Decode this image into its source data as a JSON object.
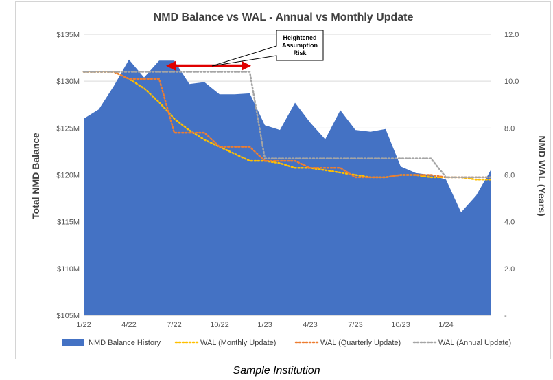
{
  "chart_data": {
    "type": "area",
    "title": "NMD Balance vs WAL - Annual vs Monthly Update",
    "ylabel": "Total NMD Balance",
    "y2label": "NMD WAL (Years)",
    "ylim": [
      105,
      135
    ],
    "y2lim": [
      0,
      12
    ],
    "y_ticks": [
      105,
      110,
      115,
      120,
      125,
      130,
      135
    ],
    "y_tick_labels": [
      "$105M",
      "$110M",
      "$115M",
      "$120M",
      "$125M",
      "$130M",
      "$135M"
    ],
    "y2_ticks": [
      0,
      2,
      4,
      6,
      8,
      10,
      12
    ],
    "y2_tick_labels": [
      "-",
      "2.0",
      "4.0",
      "6.0",
      "8.0",
      "10.0",
      "12.0"
    ],
    "x_tick_labels": [
      "1/22",
      "4/22",
      "7/22",
      "10/22",
      "1/23",
      "4/23",
      "7/23",
      "10/23",
      "1/24"
    ],
    "x_tick_index": [
      0,
      3,
      6,
      9,
      12,
      15,
      18,
      21,
      24
    ],
    "n_points": 28,
    "balance": {
      "name": "NMD Balance History",
      "color": "#4472c4",
      "values": [
        126.0,
        127.0,
        129.5,
        132.3,
        130.4,
        132.2,
        132.2,
        129.7,
        129.9,
        128.6,
        128.6,
        128.7,
        125.3,
        124.8,
        127.7,
        125.6,
        123.8,
        126.9,
        124.8,
        124.6,
        124.9,
        120.9,
        120.2,
        120.0,
        119.5,
        116.0,
        117.8,
        120.6
      ]
    },
    "wal_series": [
      {
        "name": "WAL (Monthly Update)",
        "color": "#ffc000",
        "values": [
          10.4,
          10.4,
          10.4,
          10.1,
          9.7,
          9.1,
          8.4,
          7.9,
          7.5,
          7.2,
          6.9,
          6.6,
          6.6,
          6.5,
          6.3,
          6.3,
          6.2,
          6.1,
          6.0,
          5.9,
          5.9,
          6.0,
          6.0,
          5.9,
          5.9,
          5.9,
          5.8,
          5.8
        ]
      },
      {
        "name": "WAL (Quarterly Update)",
        "color": "#ed7d31",
        "values": [
          10.4,
          10.4,
          10.4,
          10.1,
          10.1,
          10.1,
          7.8,
          7.8,
          7.8,
          7.2,
          7.2,
          7.2,
          6.6,
          6.6,
          6.6,
          6.3,
          6.3,
          6.3,
          5.9,
          5.9,
          5.9,
          6.0,
          6.0,
          6.0,
          5.9,
          5.9,
          5.9,
          5.9
        ]
      },
      {
        "name": "WAL (Annual Update)",
        "color": "#a5a5a5",
        "values": [
          10.4,
          10.4,
          10.4,
          10.4,
          10.4,
          10.4,
          10.4,
          10.4,
          10.4,
          10.4,
          10.4,
          10.4,
          6.7,
          6.7,
          6.7,
          6.7,
          6.7,
          6.7,
          6.7,
          6.7,
          6.7,
          6.7,
          6.7,
          6.7,
          5.9,
          5.9,
          5.9,
          5.9
        ]
      }
    ],
    "annotation": {
      "lines": [
        "Heightened",
        "Assumption",
        "Risk"
      ],
      "arrow_color": "#e00000",
      "arrow_from_index": 6,
      "arrow_to_index": 12,
      "arrow_level": 131.5
    },
    "legend_position": "bottom"
  },
  "caption": "Sample Institution"
}
